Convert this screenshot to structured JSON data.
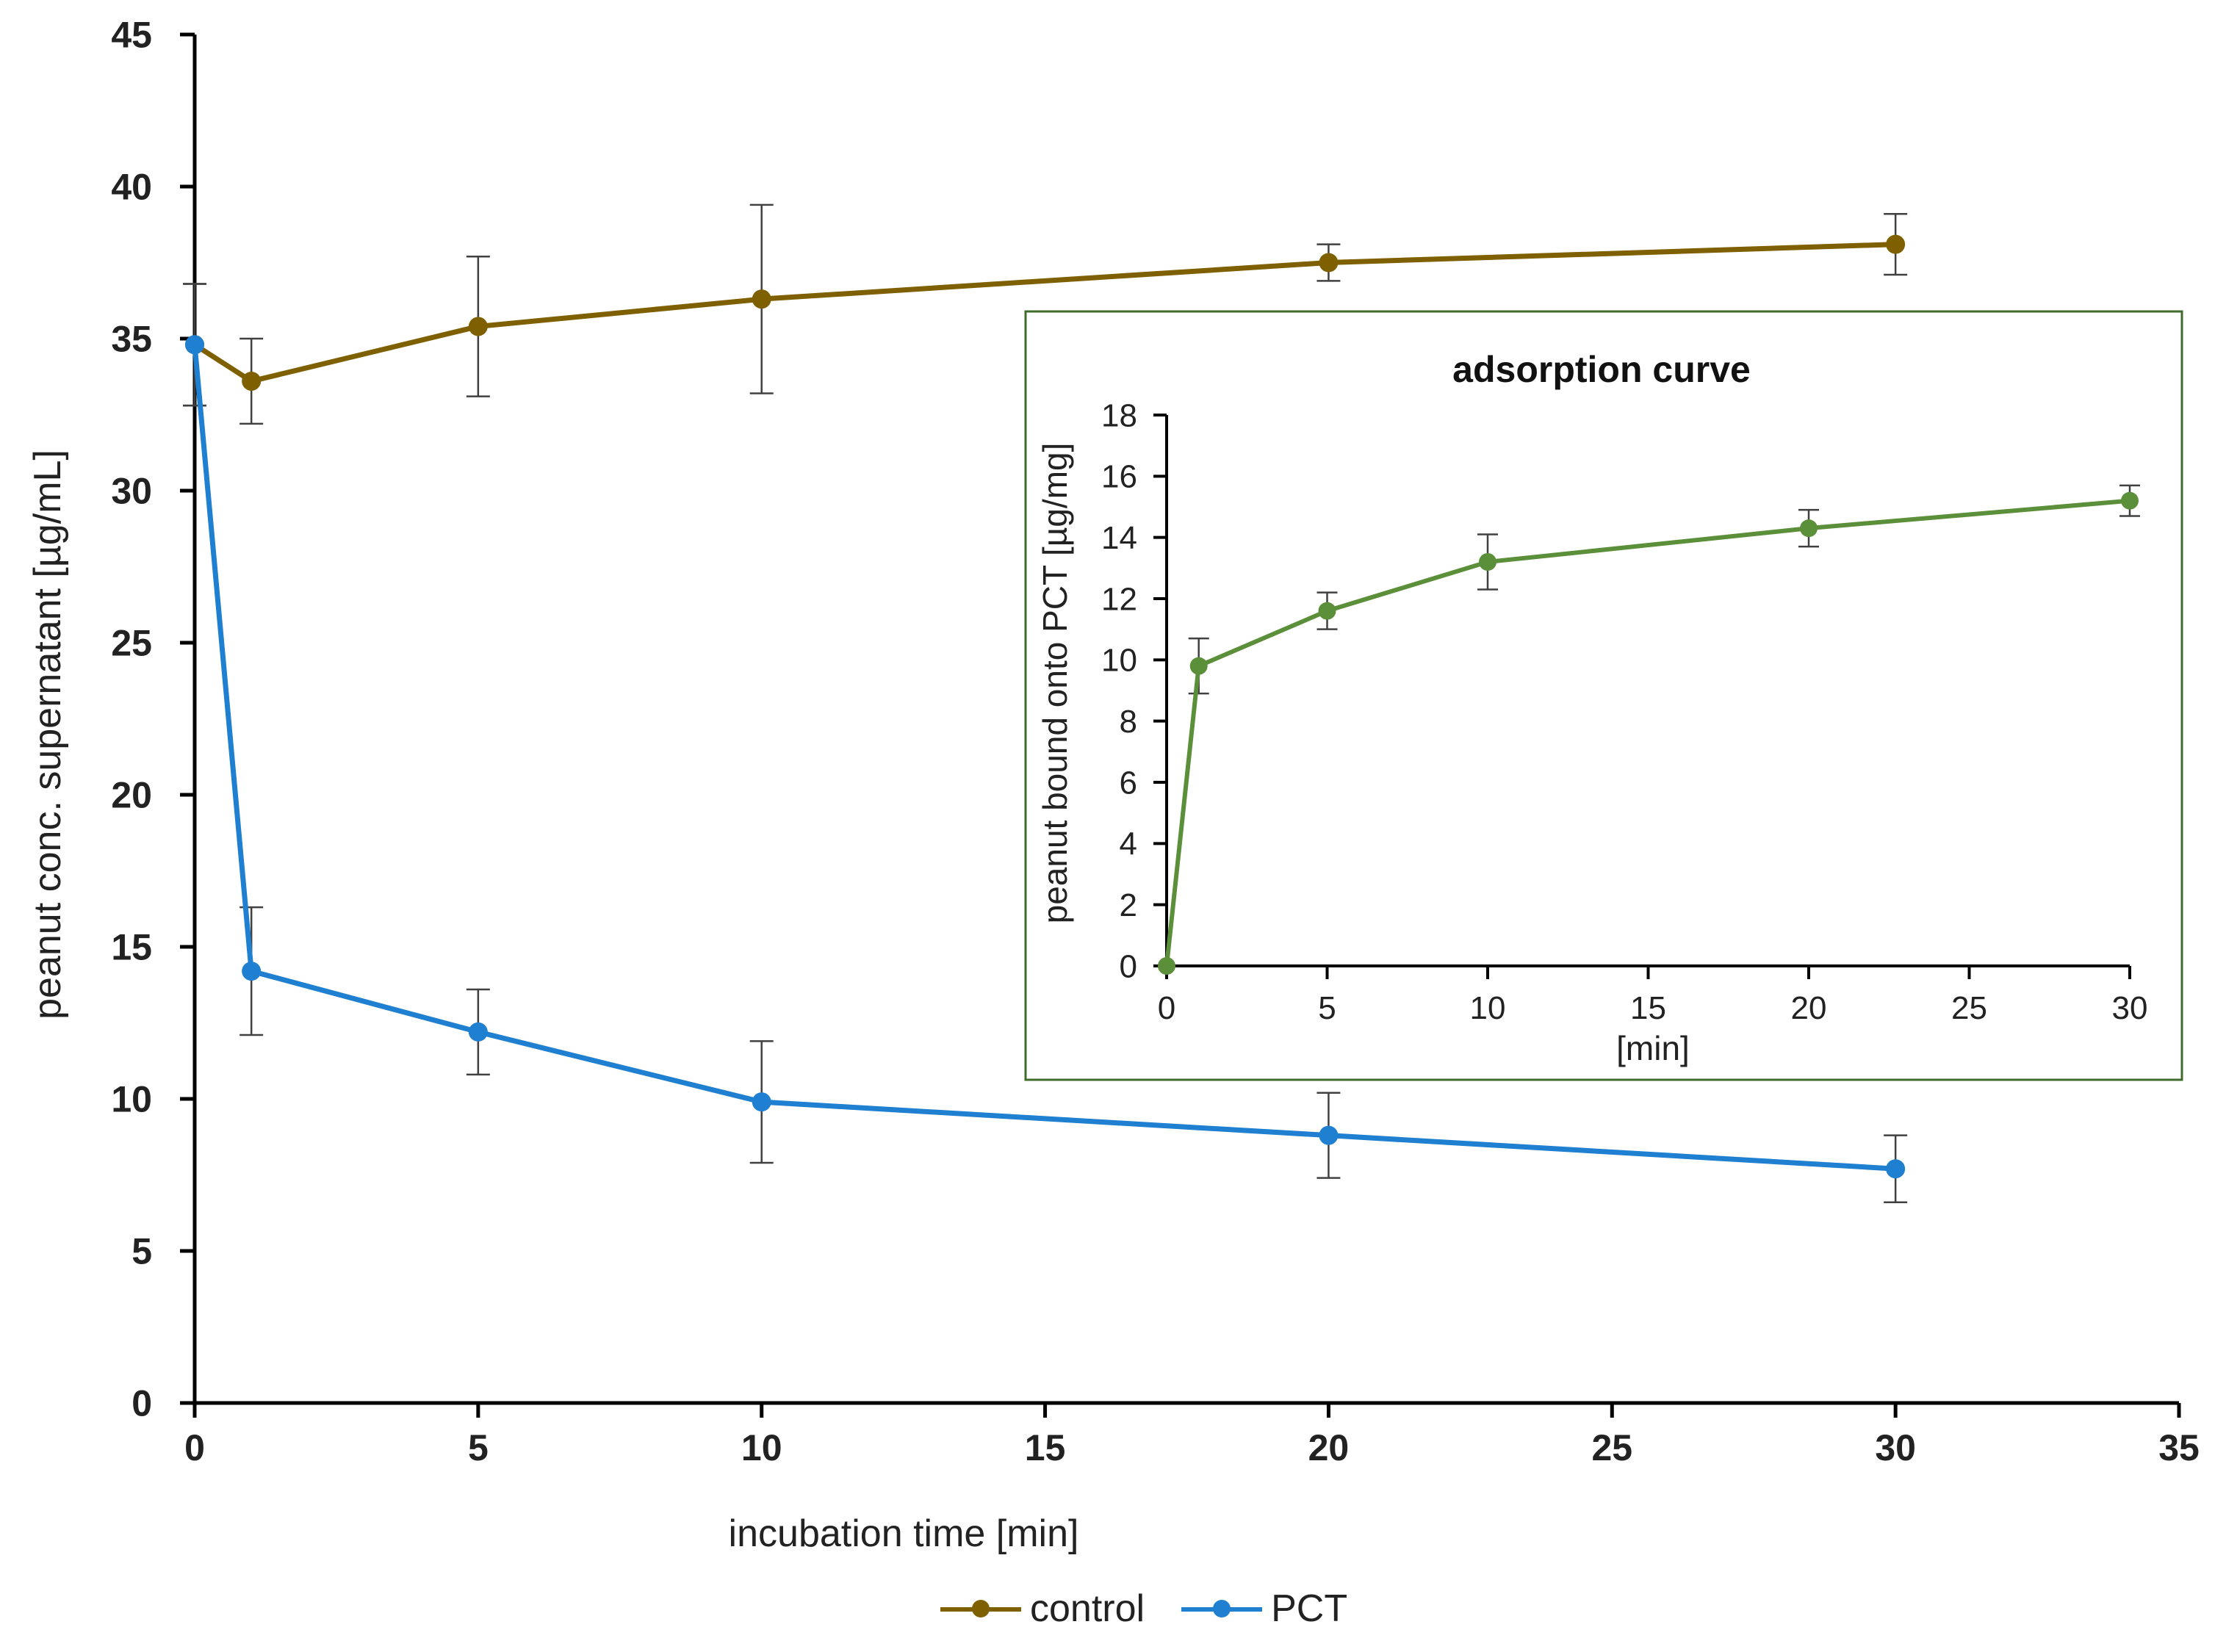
{
  "chart_data": [
    {
      "type": "line",
      "xlabel": "incubation time [min]",
      "ylabel": "peanut conc. supernatant [µg/mL]",
      "xlim": [
        0,
        35
      ],
      "ylim": [
        0,
        45
      ],
      "xticks": [
        0,
        5,
        10,
        15,
        20,
        25,
        30,
        35
      ],
      "yticks": [
        0,
        5,
        10,
        15,
        20,
        25,
        30,
        35,
        40,
        45
      ],
      "x": [
        0,
        1,
        5,
        10,
        20,
        30
      ],
      "series": [
        {
          "name": "control",
          "color": "#7f6000",
          "values": [
            34.8,
            33.6,
            35.4,
            36.3,
            37.5,
            38.1
          ],
          "errors": [
            2.0,
            1.4,
            2.3,
            3.1,
            0.6,
            1.0
          ]
        },
        {
          "name": "PCT",
          "color": "#1f7fd0",
          "values": [
            34.8,
            14.2,
            12.2,
            9.9,
            8.8,
            7.7
          ],
          "errors": [
            2.0,
            2.1,
            1.4,
            2.0,
            1.4,
            1.1
          ]
        }
      ],
      "legend": "bottom-center",
      "grid": false
    },
    {
      "type": "line",
      "title": "adsorption curve",
      "xlabel": "[min]",
      "ylabel": "peanut bound onto PCT [µg/mg]",
      "xlim": [
        0,
        30
      ],
      "ylim": [
        0,
        18
      ],
      "xticks": [
        0,
        5,
        10,
        15,
        20,
        25,
        30
      ],
      "yticks": [
        0,
        2,
        4,
        6,
        8,
        10,
        12,
        14,
        16,
        18
      ],
      "x": [
        0,
        1,
        5,
        10,
        20,
        30
      ],
      "series": [
        {
          "name": "adsorption",
          "color": "#5b8f3a",
          "values": [
            0,
            9.8,
            11.6,
            13.2,
            14.3,
            15.2
          ],
          "errors": [
            0,
            0.9,
            0.6,
            0.9,
            0.6,
            0.5
          ]
        }
      ],
      "grid": false
    }
  ]
}
